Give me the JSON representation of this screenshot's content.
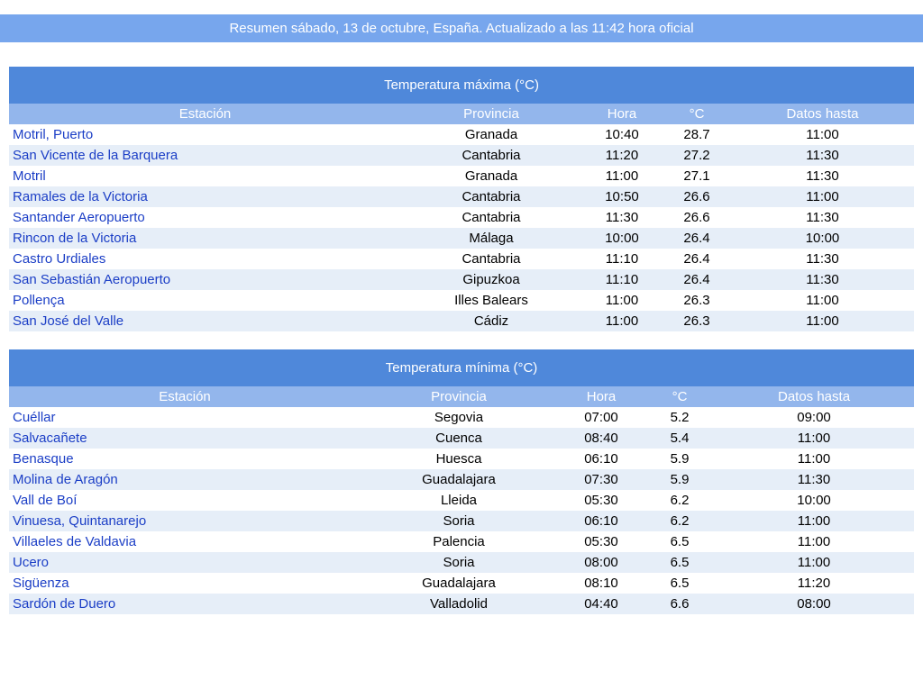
{
  "header": {
    "title": "Resumen sábado, 13 de octubre, España. Actualizado a las 11:42 hora oficial"
  },
  "tables": [
    {
      "title": "Temperatura máxima (°C)",
      "columns": [
        "Estación",
        "Provincia",
        "Hora",
        "°C",
        "Datos hasta"
      ],
      "rows": [
        [
          "Motril, Puerto",
          "Granada",
          "10:40",
          28.7,
          "11:00"
        ],
        [
          "San Vicente de la Barquera",
          "Cantabria",
          "11:20",
          27.2,
          "11:30"
        ],
        [
          "Motril",
          "Granada",
          "11:00",
          27.1,
          "11:30"
        ],
        [
          "Ramales de la Victoria",
          "Cantabria",
          "10:50",
          26.6,
          "11:00"
        ],
        [
          "Santander Aeropuerto",
          "Cantabria",
          "11:30",
          26.6,
          "11:30"
        ],
        [
          "Rincon de la Victoria",
          "Málaga",
          "10:00",
          26.4,
          "10:00"
        ],
        [
          "Castro Urdiales",
          "Cantabria",
          "11:10",
          26.4,
          "11:30"
        ],
        [
          "San Sebastián Aeropuerto",
          "Gipuzkoa",
          "11:10",
          26.4,
          "11:30"
        ],
        [
          "Pollença",
          "Illes Balears",
          "11:00",
          26.3,
          "11:00"
        ],
        [
          "San José del Valle",
          "Cádiz",
          "11:00",
          26.3,
          "11:00"
        ]
      ]
    },
    {
      "title": "Temperatura mínima (°C)",
      "columns": [
        "Estación",
        "Provincia",
        "Hora",
        "°C",
        "Datos hasta"
      ],
      "rows": [
        [
          "Cuéllar",
          "Segovia",
          "07:00",
          5.2,
          "09:00"
        ],
        [
          "Salvacañete",
          "Cuenca",
          "08:40",
          5.4,
          "11:00"
        ],
        [
          "Benasque",
          "Huesca",
          "06:10",
          5.9,
          "11:00"
        ],
        [
          "Molina de Aragón",
          "Guadalajara",
          "07:30",
          5.9,
          "11:30"
        ],
        [
          "Vall de Boí",
          "Lleida",
          "05:30",
          6.2,
          "10:00"
        ],
        [
          "Vinuesa, Quintanarejo",
          "Soria",
          "06:10",
          6.2,
          "11:00"
        ],
        [
          "Villaeles de Valdavia",
          "Palencia",
          "05:30",
          6.5,
          "11:00"
        ],
        [
          "Ucero",
          "Soria",
          "08:00",
          6.5,
          "11:00"
        ],
        [
          "Sigüenza",
          "Guadalajara",
          "08:10",
          6.5,
          "11:20"
        ],
        [
          "Sardón de Duero",
          "Valladolid",
          "04:40",
          6.6,
          "08:00"
        ]
      ]
    }
  ]
}
